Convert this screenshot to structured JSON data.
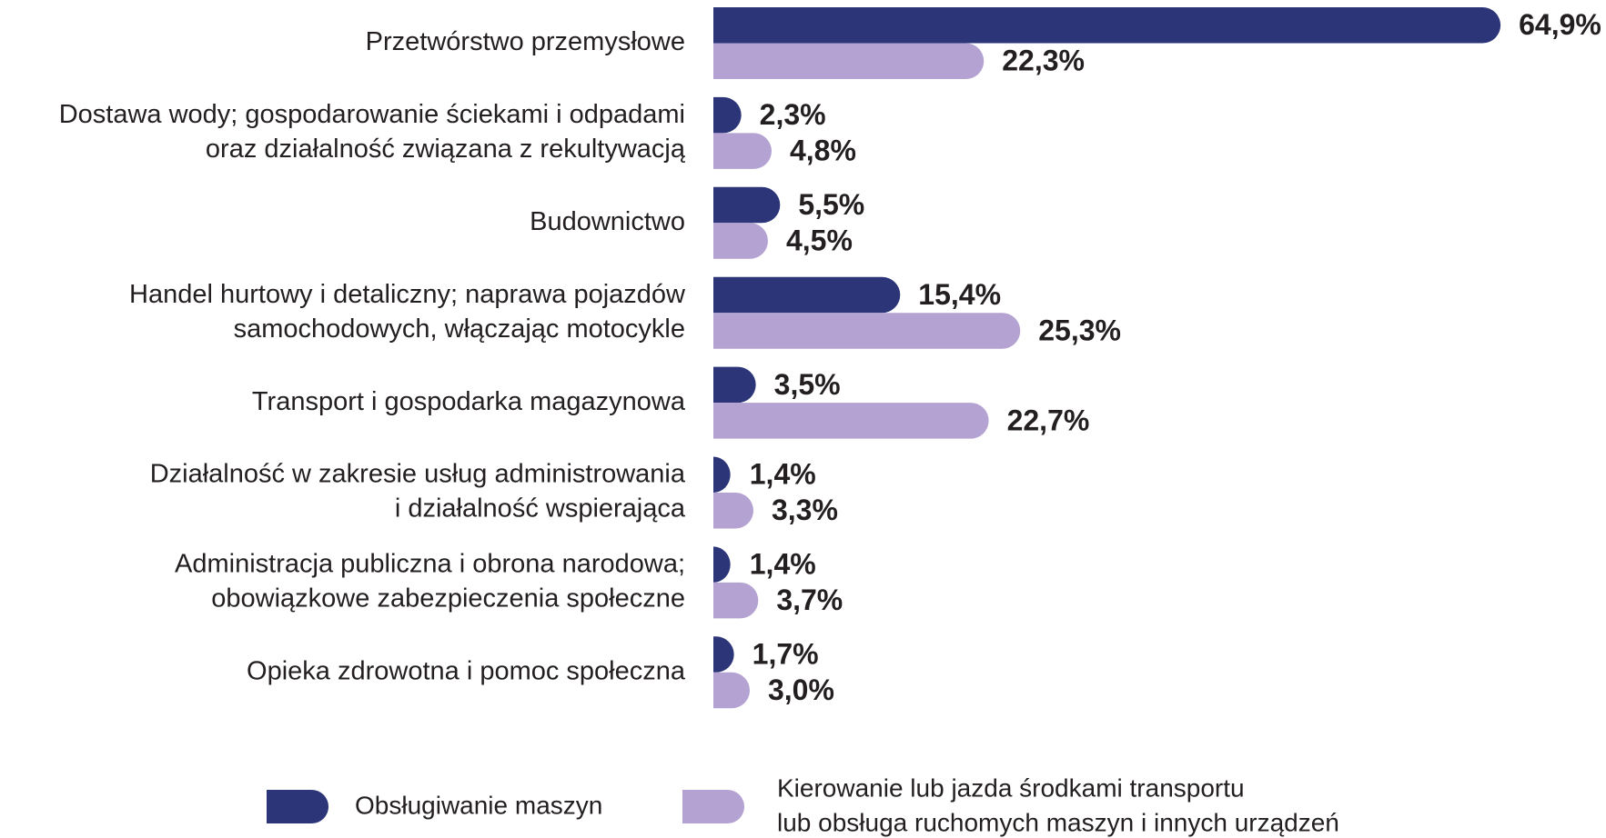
{
  "chart_data": {
    "type": "bar",
    "orientation": "horizontal",
    "categories": [
      [
        "Przetwórstwo przemysłowe"
      ],
      [
        "Dostawa wody; gospodarowanie ściekami i odpadami",
        "oraz działalność związana z rekultywacją"
      ],
      [
        "Budownictwo"
      ],
      [
        "Handel hurtowy i detaliczny; naprawa pojazdów",
        "samochodowych, włączając motocykle"
      ],
      [
        "Transport i gospodarka magazynowa"
      ],
      [
        "Działalność w zakresie usług administrowania",
        "i działalność wspierająca"
      ],
      [
        "Administracja publiczna i obrona narodowa;",
        "obowiązkowe zabezpieczenia społeczne"
      ],
      [
        "Opieka zdrowotna i pomoc społeczna"
      ]
    ],
    "series": [
      {
        "name": [
          "Obsługiwanie maszyn"
        ],
        "color": "#2b3578",
        "values": [
          64.9,
          2.3,
          5.5,
          15.4,
          3.5,
          1.4,
          1.4,
          1.7
        ],
        "value_labels": [
          "64,9%",
          "2,3%",
          "5,5%",
          "15,4%",
          "3,5%",
          "1,4%",
          "1,4%",
          "1,7%"
        ]
      },
      {
        "name": [
          "Kierowanie lub jazda środkami transportu",
          "lub obsługa ruchomych maszyn i innych urządzeń"
        ],
        "color": "#b3a2d2",
        "values": [
          22.3,
          4.8,
          4.5,
          25.3,
          22.7,
          3.3,
          3.7,
          3.0
        ],
        "value_labels": [
          "22,3%",
          "4,8%",
          "4,5%",
          "25,3%",
          "22,7%",
          "3,3%",
          "3,7%",
          "3,0%"
        ]
      }
    ]
  }
}
